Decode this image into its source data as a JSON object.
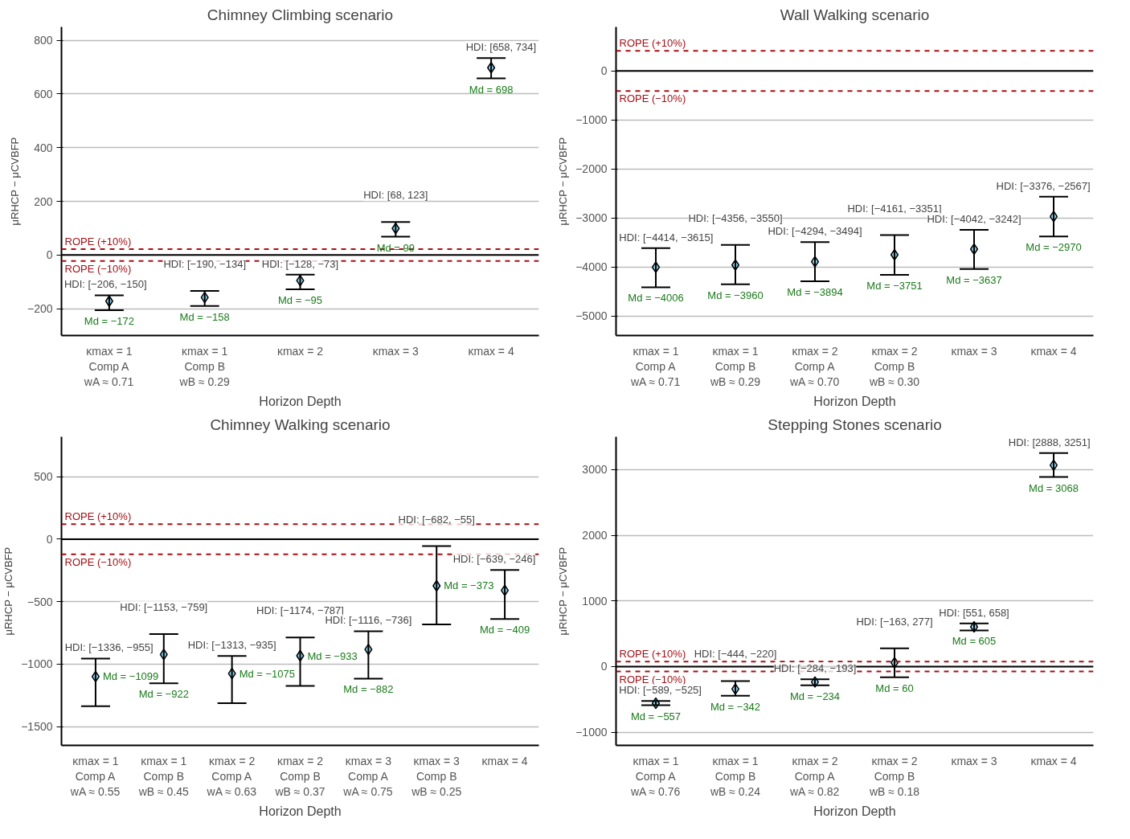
{
  "chart_data": [
    {
      "type": "scatter",
      "title": "Chimney Climbing scenario",
      "xlabel": "Horizon Depth",
      "ylabel": "μRHCP − μCVBFP",
      "marker": "diamond",
      "grid": "y",
      "categories": [
        "κmax = 1\nComp A\nwA ≈ 0.71",
        "κmax = 1\nComp B\nwB ≈ 0.29",
        "κmax = 2",
        "κmax = 3",
        "κmax = 4"
      ],
      "series": [
        {
          "color": "#87ceeb",
          "values": [
            -172,
            -158,
            -95,
            99,
            698
          ],
          "errors": [
            [
              -206,
              -150
            ],
            [
              -190,
              -134
            ],
            [
              -128,
              -73
            ],
            [
              68,
              123
            ],
            [
              658,
              734
            ]
          ],
          "value_labels": [
            "Md = −172",
            "Md = −158",
            "Md = −95",
            "Md = 99",
            "Md = 698"
          ]
        }
      ],
      "annotations": [
        {
          "text": "HDI: [−206, −150]",
          "x": "κmax = 1\nComp A\nwA ≈ 0.71",
          "y": -150
        },
        {
          "text": "HDI: [−190, −134]",
          "x": "κmax = 1\nComp B\nwB ≈ 0.29",
          "y": -134
        },
        {
          "text": "HDI: [−128, −73]",
          "x": "κmax = 2",
          "y": -73
        },
        {
          "text": "HDI: [68, 123]",
          "x": "κmax = 3",
          "y": 123
        },
        {
          "text": "HDI: [658, 734]",
          "x": "κmax = 4",
          "y": 734
        }
      ],
      "ref_lines": [
        {
          "axis": "y",
          "value": 0,
          "label": null,
          "color": "#000000",
          "line_style": "solid"
        },
        {
          "axis": "y",
          "value": 22,
          "label": "ROPE (+10%)",
          "color": "#a50f15",
          "line_style": "dashed"
        },
        {
          "axis": "y",
          "value": -22,
          "label": "ROPE (−10%)",
          "color": "#a50f15",
          "line_style": "dashed"
        }
      ],
      "ylim": [
        -300,
        850
      ],
      "yticks": [
        -200,
        0,
        200,
        400,
        600,
        800
      ]
    },
    {
      "type": "scatter",
      "title": "Wall Walking scenario",
      "xlabel": "Horizon Depth",
      "ylabel": "μRHCP − μCVBFP",
      "marker": "diamond",
      "grid": "y",
      "categories": [
        "κmax = 1\nComp A\nwA ≈ 0.71",
        "κmax = 1\nComp B\nwB ≈ 0.29",
        "κmax = 2\nComp A\nwA ≈ 0.70",
        "κmax = 2\nComp B\nwB ≈ 0.30",
        "κmax = 3",
        "κmax = 4"
      ],
      "series": [
        {
          "color": "#87ceeb",
          "values": [
            -4006,
            -3960,
            -3894,
            -3751,
            -3637,
            -2970
          ],
          "errors": [
            [
              -4414,
              -3615
            ],
            [
              -4356,
              -3550
            ],
            [
              -4294,
              -3494
            ],
            [
              -4161,
              -3351
            ],
            [
              -4042,
              -3242
            ],
            [
              -3376,
              -2567
            ]
          ],
          "value_labels": [
            "Md = −4006",
            "Md = −3960",
            "Md = −3894",
            "Md = −3751",
            "Md = −3637",
            "Md = −2970"
          ]
        }
      ],
      "annotations": [
        {
          "text": "HDI: [−4414, −3615]",
          "x": "κmax = 1\nComp A\nwA ≈ 0.71",
          "y": -3615
        },
        {
          "text": "HDI: [−4356, −3550]",
          "x": "κmax = 1\nComp B\nwB ≈ 0.29",
          "y": -3550
        },
        {
          "text": "HDI: [−4294, −3494]",
          "x": "κmax = 2\nComp A\nwA ≈ 0.70",
          "y": -3494
        },
        {
          "text": "HDI: [−4161, −3351]",
          "x": "κmax = 2\nComp B\nwB ≈ 0.30",
          "y": -3351
        },
        {
          "text": "HDI: [−4042, −3242]",
          "x": "κmax = 3",
          "y": -3242
        },
        {
          "text": "HDI: [−3376, −2567]",
          "x": "κmax = 4",
          "y": -2567
        }
      ],
      "ref_lines": [
        {
          "axis": "y",
          "value": 0,
          "label": null,
          "color": "#000000",
          "line_style": "solid"
        },
        {
          "axis": "y",
          "value": 410,
          "label": "ROPE (+10%)",
          "color": "#a50f15",
          "line_style": "dashed"
        },
        {
          "axis": "y",
          "value": -410,
          "label": "ROPE (−10%)",
          "color": "#a50f15",
          "line_style": "dashed"
        }
      ],
      "ylim": [
        -5400,
        900
      ],
      "yticks": [
        -5000,
        -4000,
        -3000,
        -2000,
        -1000,
        0
      ]
    },
    {
      "type": "scatter",
      "title": "Chimney Walking scenario",
      "xlabel": "Horizon Depth",
      "ylabel": "μRHCP − μCVBFP",
      "marker": "diamond",
      "grid": "y",
      "categories": [
        "κmax = 1\nComp A\nwA ≈ 0.55",
        "κmax = 1\nComp B\nwB ≈ 0.45",
        "κmax = 2\nComp A\nwA ≈ 0.63",
        "κmax = 2\nComp B\nwB ≈ 0.37",
        "κmax = 3\nComp A\nwA ≈ 0.75",
        "κmax = 3\nComp B\nwB ≈ 0.25",
        "κmax = 4"
      ],
      "series": [
        {
          "color": "#87ceeb",
          "values": [
            -1099,
            -922,
            -1075,
            -933,
            -882,
            -373,
            -409
          ],
          "errors": [
            [
              -1336,
              -955
            ],
            [
              -1153,
              -759
            ],
            [
              -1313,
              -935
            ],
            [
              -1174,
              -787
            ],
            [
              -1116,
              -736
            ],
            [
              -682,
              -55
            ],
            [
              -639,
              -246
            ]
          ],
          "value_labels": [
            "Md = −1099",
            "Md = −922",
            "Md = −1075",
            "Md = −933",
            "Md = −882",
            "Md = −373",
            "Md = −409"
          ]
        }
      ],
      "annotations": [
        {
          "text": "HDI: [−1336, −955]",
          "x": "κmax = 1\nComp A\nwA ≈ 0.55",
          "y": -955
        },
        {
          "text": "HDI: [−1153, −759]",
          "x": "κmax = 1\nComp B\nwB ≈ 0.45",
          "y": -759
        },
        {
          "text": "HDI: [−1313, −935]",
          "x": "κmax = 2\nComp A\nwA ≈ 0.63",
          "y": -935
        },
        {
          "text": "HDI: [−1174, −787]",
          "x": "κmax = 2\nComp B\nwB ≈ 0.37",
          "y": -787
        },
        {
          "text": "HDI: [−1116, −736]",
          "x": "κmax = 3\nComp A\nwA ≈ 0.75",
          "y": -736
        },
        {
          "text": "HDI: [−682, −55]",
          "x": "κmax = 3\nComp B\nwB ≈ 0.25",
          "y": -55
        },
        {
          "text": "HDI: [−639, −246]",
          "x": "κmax = 4",
          "y": -246
        }
      ],
      "ref_lines": [
        {
          "axis": "y",
          "value": 0,
          "label": null,
          "color": "#000000",
          "line_style": "solid"
        },
        {
          "axis": "y",
          "value": 120,
          "label": "ROPE (+10%)",
          "color": "#a50f15",
          "line_style": "dashed"
        },
        {
          "axis": "y",
          "value": -120,
          "label": "ROPE (−10%)",
          "color": "#a50f15",
          "line_style": "dashed"
        }
      ],
      "ylim": [
        -1650,
        820
      ],
      "yticks": [
        -1500,
        -1000,
        -500,
        0,
        500
      ]
    },
    {
      "type": "scatter",
      "title": "Stepping Stones scenario",
      "xlabel": "Horizon Depth",
      "ylabel": "μRHCP − μCVBFP",
      "marker": "diamond",
      "grid": "y",
      "categories": [
        "κmax = 1\nComp A\nwA ≈ 0.76",
        "κmax = 1\nComp B\nwB ≈ 0.24",
        "κmax = 2\nComp A\nwA ≈ 0.82",
        "κmax = 2\nComp B\nwB ≈ 0.18",
        "κmax = 3",
        "κmax = 4"
      ],
      "series": [
        {
          "color": "#87ceeb",
          "values": [
            -557,
            -342,
            -234,
            60,
            605,
            3068
          ],
          "errors": [
            [
              -589,
              -525
            ],
            [
              -444,
              -220
            ],
            [
              -284,
              -193
            ],
            [
              -163,
              277
            ],
            [
              551,
              658
            ],
            [
              2888,
              3251
            ]
          ],
          "value_labels": [
            "Md = −557",
            "Md = −342",
            "Md = −234",
            "Md = 60",
            "Md = 605",
            "Md = 3068"
          ]
        }
      ],
      "annotations": [
        {
          "text": "HDI: [−589, −525]",
          "x": "κmax = 1\nComp A\nwA ≈ 0.76",
          "y": -525
        },
        {
          "text": "HDI: [−444, −220]",
          "x": "κmax = 1\nComp B\nwB ≈ 0.24",
          "y": -220
        },
        {
          "text": "HDI: [−284, −193]",
          "x": "κmax = 2\nComp A\nwA ≈ 0.82",
          "y": -193
        },
        {
          "text": "HDI: [−163, 277]",
          "x": "κmax = 2\nComp B\nwB ≈ 0.18",
          "y": 277
        },
        {
          "text": "HDI: [551, 658]",
          "x": "κmax = 3",
          "y": 658
        },
        {
          "text": "HDI: [2888, 3251]",
          "x": "κmax = 4",
          "y": 3251
        }
      ],
      "ref_lines": [
        {
          "axis": "y",
          "value": 0,
          "label": null,
          "color": "#000000",
          "line_style": "solid"
        },
        {
          "axis": "y",
          "value": 75,
          "label": "ROPE (+10%)",
          "color": "#a50f15",
          "line_style": "dashed"
        },
        {
          "axis": "y",
          "value": -75,
          "label": "ROPE (−10%)",
          "color": "#a50f15",
          "line_style": "dashed"
        }
      ],
      "ylim": [
        -1200,
        3500
      ],
      "yticks": [
        -1000,
        0,
        1000,
        2000,
        3000
      ]
    }
  ]
}
